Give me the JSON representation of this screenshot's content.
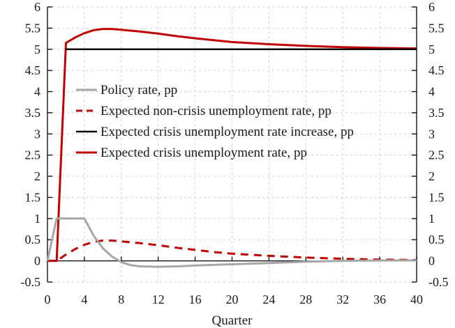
{
  "chart_data": {
    "type": "line",
    "title": "",
    "xlabel": "Quarter",
    "ylabel": "",
    "xlim": [
      0,
      40
    ],
    "ylim": [
      -0.5,
      6
    ],
    "x_ticks": [
      0,
      4,
      8,
      12,
      16,
      20,
      24,
      28,
      32,
      36,
      40
    ],
    "y_ticks": [
      -0.5,
      0,
      0.5,
      1,
      1.5,
      2,
      2.5,
      3,
      3.5,
      4,
      4.5,
      5,
      5.5,
      6
    ],
    "y_tick_labels": [
      "-0.5",
      "0",
      "0.5",
      "1",
      "1.5",
      "2",
      "2.5",
      "3",
      "3.5",
      "4",
      "4.5",
      "5",
      "5.5",
      "6"
    ],
    "secondary_y_axis": true,
    "grid": true,
    "legend_position": "center-left",
    "series": [
      {
        "name": "Policy rate, pp",
        "color": "#a6a6a6",
        "style": "solid",
        "x": [
          0,
          1,
          2,
          3,
          4,
          5,
          6,
          7,
          8,
          9,
          10,
          12,
          14,
          16,
          20,
          24,
          28,
          32,
          36,
          40
        ],
        "y": [
          0,
          1,
          1,
          1,
          1,
          0.6,
          0.3,
          0.1,
          -0.03,
          -0.1,
          -0.13,
          -0.14,
          -0.13,
          -0.11,
          -0.08,
          -0.05,
          -0.02,
          0,
          0.01,
          0.01
        ]
      },
      {
        "name": "Expected non-crisis unemployment rate, pp",
        "color": "#c00000",
        "style": "dashed",
        "x": [
          0,
          1,
          2,
          3,
          4,
          5,
          6,
          7,
          8,
          10,
          12,
          14,
          16,
          18,
          20,
          24,
          28,
          32,
          36,
          40
        ],
        "y": [
          0,
          0,
          0.15,
          0.28,
          0.38,
          0.45,
          0.48,
          0.48,
          0.46,
          0.42,
          0.37,
          0.31,
          0.26,
          0.21,
          0.17,
          0.12,
          0.08,
          0.05,
          0.03,
          0.02
        ]
      },
      {
        "name": "Expected crisis unemployment rate increase, pp",
        "color": "#000000",
        "style": "solid",
        "x": [
          2,
          40
        ],
        "y": [
          5,
          5
        ]
      },
      {
        "name": "Expected crisis unemployment rate, pp",
        "color": "#c00000",
        "style": "solid",
        "x": [
          0,
          1,
          2,
          3,
          4,
          5,
          6,
          7,
          8,
          10,
          12,
          14,
          16,
          20,
          24,
          28,
          32,
          36,
          40
        ],
        "y": [
          0,
          0,
          5.15,
          5.28,
          5.38,
          5.45,
          5.48,
          5.48,
          5.46,
          5.42,
          5.37,
          5.31,
          5.26,
          5.17,
          5.12,
          5.08,
          5.05,
          5.03,
          5.02
        ]
      }
    ]
  }
}
